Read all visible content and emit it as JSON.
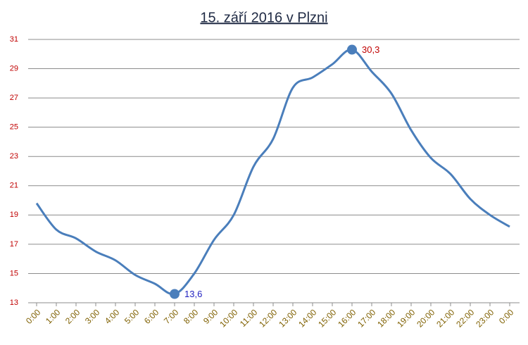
{
  "chart_data": {
    "type": "line",
    "title": "15. září 2016 v Plzni",
    "categories": [
      "0:00",
      "1:00",
      "2:00",
      "3:00",
      "4:00",
      "5:00",
      "6:00",
      "7:00",
      "8:00",
      "9:00",
      "10:00",
      "11:00",
      "12:00",
      "13:00",
      "14:00",
      "15:00",
      "16:00",
      "17:00",
      "18:00",
      "19:00",
      "20:00",
      "21:00",
      "22:00",
      "23:00",
      "0:00"
    ],
    "series": [
      {
        "color": "#4a7ebb",
        "values": [
          19.8,
          18.0,
          17.4,
          16.5,
          15.9,
          14.9,
          14.3,
          13.6,
          15.0,
          17.3,
          19.0,
          22.3,
          24.2,
          27.7,
          28.4,
          29.3,
          30.3,
          28.8,
          27.3,
          24.8,
          22.9,
          21.8,
          20.1,
          19.0,
          18.2
        ],
        "value_labels": [
          null,
          null,
          null,
          null,
          null,
          null,
          null,
          "13,6",
          null,
          null,
          null,
          null,
          null,
          null,
          null,
          null,
          "30,3",
          null,
          null,
          null,
          null,
          null,
          null,
          null,
          null
        ],
        "value_label_colors": [
          null,
          null,
          null,
          null,
          null,
          null,
          null,
          "#1f1fc0",
          null,
          null,
          null,
          null,
          null,
          null,
          null,
          null,
          "#c00000",
          null,
          null,
          null,
          null,
          null,
          null,
          null,
          null
        ]
      }
    ],
    "ylim": [
      13,
      31
    ],
    "yticks": [
      13,
      15,
      17,
      19,
      21,
      23,
      25,
      27,
      29,
      31
    ],
    "grid": true,
    "ytick_color": "#c00000",
    "xtick_color": "#7f6000",
    "title_color": "#1f2a44"
  }
}
